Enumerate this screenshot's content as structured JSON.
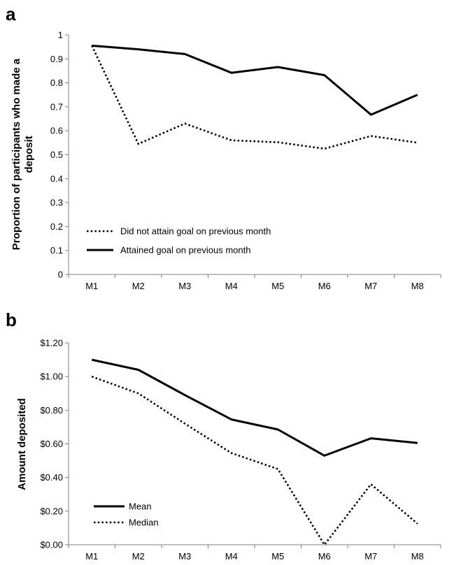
{
  "colors": {
    "line": "#000000",
    "axis": "#7f7f7f"
  },
  "chart_data": [
    {
      "panel": "a",
      "type": "line",
      "categories": [
        "M1",
        "M2",
        "M3",
        "M4",
        "M5",
        "M6",
        "M7",
        "M8"
      ],
      "ylabel_lines": [
        "Proportion of participants who made a",
        "deposit"
      ],
      "ylim": [
        0,
        1
      ],
      "yticks": [
        "0",
        "0.1",
        "0.2",
        "0.3",
        "0.4",
        "0.5",
        "0.6",
        "0.7",
        "0.8",
        "0.9",
        "1"
      ],
      "grid": false,
      "legend_position": "bottom-left",
      "series": [
        {
          "name": "Did not attain goal on previous month",
          "style": "dotted",
          "values": [
            0.955,
            0.545,
            0.63,
            0.56,
            0.552,
            0.525,
            0.578,
            0.55
          ]
        },
        {
          "name": "Attained goal on previous month",
          "style": "solid",
          "values": [
            0.955,
            0.94,
            0.92,
            0.842,
            0.866,
            0.832,
            0.667,
            0.75
          ]
        }
      ]
    },
    {
      "panel": "b",
      "type": "line",
      "categories": [
        "M1",
        "M2",
        "M3",
        "M4",
        "M5",
        "M6",
        "M7",
        "M8"
      ],
      "ylabel_lines": [
        "Amount deposited"
      ],
      "ylim": [
        0,
        1.2
      ],
      "yticks": [
        "$0.00",
        "$0.20",
        "$0.40",
        "$0.60",
        "$0.80",
        "$1.00",
        "$1.20"
      ],
      "grid": false,
      "legend_position": "bottom-left",
      "series": [
        {
          "name": "Mean",
          "style": "solid",
          "values": [
            1.1,
            1.04,
            0.89,
            0.745,
            0.685,
            0.53,
            0.633,
            0.605
          ]
        },
        {
          "name": "Median",
          "style": "dotted",
          "values": [
            1.0,
            0.9,
            0.72,
            0.545,
            0.45,
            0.0,
            0.36,
            0.125
          ]
        }
      ]
    }
  ]
}
